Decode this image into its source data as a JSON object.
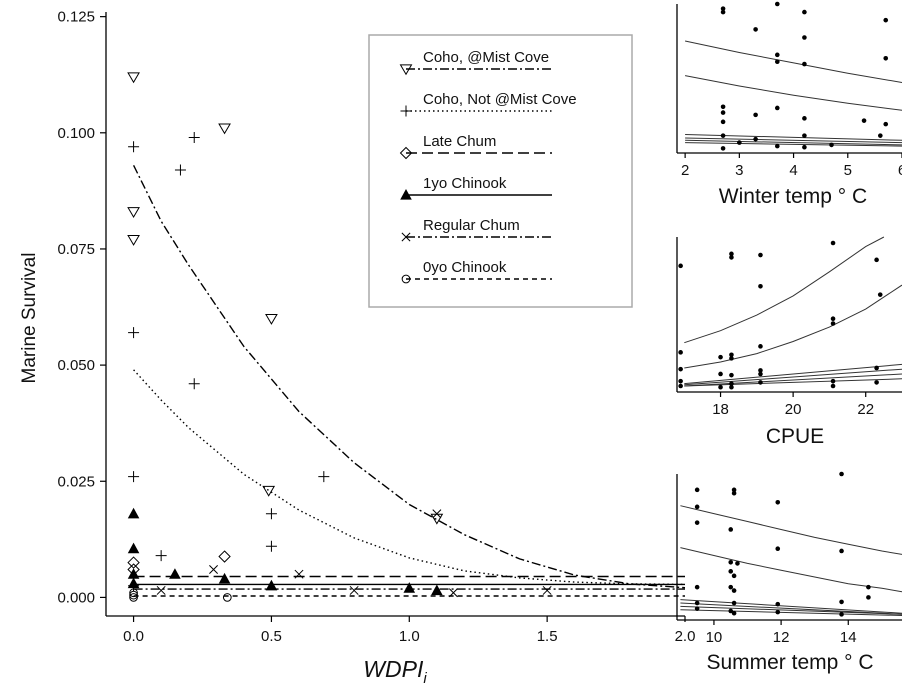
{
  "chart_data": [
    {
      "type": "scatter",
      "title": "",
      "xlabel": "WDPI",
      "xlabel_subscript": "i",
      "ylabel": "Marine Survival",
      "xlim": [
        -0.1,
        2.0
      ],
      "ylim": [
        -0.004,
        0.126
      ],
      "xticks": [
        0.0,
        0.5,
        1.0,
        1.5,
        2.0
      ],
      "xtick_labels": [
        "0.0",
        "0.5",
        "1.0",
        "1.5",
        "2.0"
      ],
      "yticks": [
        0.0,
        0.025,
        0.05,
        0.075,
        0.1,
        0.125
      ],
      "ytick_labels": [
        "0.000",
        "0.025",
        "0.050",
        "0.075",
        "0.100",
        "0.125"
      ],
      "grid": false,
      "legend_position": "top-center",
      "series": [
        {
          "name": "Coho, @Mist Cove",
          "marker": "triangle-down-open",
          "linestyle": "dashdot",
          "points": [
            [
              0.0,
              0.112
            ],
            [
              0.0,
              0.083
            ],
            [
              0.0,
              0.077
            ],
            [
              0.33,
              0.101
            ],
            [
              0.5,
              0.06
            ],
            [
              0.49,
              0.023
            ],
            [
              1.1,
              0.017
            ]
          ],
          "fit": [
            [
              0.0,
              0.093
            ],
            [
              0.1,
              0.081
            ],
            [
              0.2,
              0.0715
            ],
            [
              0.4,
              0.054
            ],
            [
              0.6,
              0.04
            ],
            [
              0.8,
              0.029
            ],
            [
              1.0,
              0.02
            ],
            [
              1.2,
              0.0135
            ],
            [
              1.4,
              0.0083
            ],
            [
              1.6,
              0.0048
            ],
            [
              1.8,
              0.0029
            ],
            [
              2.0,
              0.0021
            ]
          ]
        },
        {
          "name": "Coho, Not @Mist Cove",
          "marker": "plus",
          "linestyle": "dotted",
          "points": [
            [
              0.0,
              0.097
            ],
            [
              0.17,
              0.092
            ],
            [
              0.22,
              0.099
            ],
            [
              0.0,
              0.057
            ],
            [
              0.0,
              0.026
            ],
            [
              0.22,
              0.046
            ],
            [
              0.5,
              0.018
            ],
            [
              0.5,
              0.011
            ],
            [
              0.69,
              0.026
            ],
            [
              0.1,
              0.009
            ],
            [
              0.0,
              0.0025
            ]
          ],
          "fit": [
            [
              0.0,
              0.049
            ],
            [
              0.1,
              0.0425
            ],
            [
              0.2,
              0.0365
            ],
            [
              0.4,
              0.0265
            ],
            [
              0.6,
              0.0188
            ],
            [
              0.8,
              0.0128
            ],
            [
              1.0,
              0.0085
            ],
            [
              1.2,
              0.0057
            ],
            [
              1.4,
              0.0042
            ],
            [
              1.6,
              0.0033
            ],
            [
              1.8,
              0.0029
            ],
            [
              2.0,
              0.0028
            ]
          ]
        },
        {
          "name": "Late Chum",
          "marker": "diamond-open",
          "linestyle": "longdash",
          "points": [
            [
              0.0,
              0.0075
            ],
            [
              0.0,
              0.006
            ],
            [
              0.33,
              0.0088
            ]
          ],
          "fit": [
            [
              0.0,
              0.0045
            ],
            [
              2.0,
              0.0045
            ]
          ]
        },
        {
          "name": "1yo Chinook",
          "marker": "triangle-up-filled",
          "linestyle": "solid",
          "points": [
            [
              0.0,
              0.018
            ],
            [
              0.0,
              0.0105
            ],
            [
              0.0,
              0.005
            ],
            [
              0.0,
              0.003
            ],
            [
              0.15,
              0.005
            ],
            [
              0.33,
              0.004
            ],
            [
              0.5,
              0.0025
            ],
            [
              1.0,
              0.002
            ],
            [
              1.1,
              0.0015
            ]
          ],
          "fit": [
            [
              0.0,
              0.0028
            ],
            [
              2.0,
              0.0028
            ]
          ]
        },
        {
          "name": "Regular Chum",
          "marker": "x",
          "linestyle": "dashdot",
          "points": [
            [
              0.1,
              0.0015
            ],
            [
              0.29,
              0.006
            ],
            [
              0.6,
              0.005
            ],
            [
              1.1,
              0.018
            ],
            [
              1.16,
              0.001
            ],
            [
              1.5,
              0.0015
            ],
            [
              0.8,
              0.0015
            ]
          ],
          "fit": [
            [
              0.0,
              0.0018
            ],
            [
              2.0,
              0.0018
            ]
          ]
        },
        {
          "name": "0yo Chinook",
          "marker": "circle-open",
          "linestyle": "shortdash",
          "points": [
            [
              0.0,
              0.0
            ],
            [
              0.0,
              0.0005
            ],
            [
              0.0,
              0.001
            ],
            [
              0.34,
              0.0
            ]
          ],
          "fit": [
            [
              0.0,
              0.0003
            ],
            [
              2.0,
              0.0003
            ]
          ]
        }
      ]
    },
    {
      "type": "scatter",
      "xlabel": "Winter temp ° C",
      "xlim": [
        1.85,
        6.0
      ],
      "ylim": [
        -0.003,
        0.126
      ],
      "xticks": [
        2,
        3,
        4,
        5,
        6
      ],
      "xtick_labels": [
        "2",
        "3",
        "4",
        "5",
        "6"
      ],
      "points": [
        [
          2.7,
          0.122
        ],
        [
          2.7,
          0.119
        ],
        [
          3.3,
          0.104
        ],
        [
          3.7,
          0.126
        ],
        [
          4.2,
          0.119
        ],
        [
          4.2,
          0.097
        ],
        [
          3.7,
          0.082
        ],
        [
          3.7,
          0.076
        ],
        [
          4.2,
          0.074
        ],
        [
          5.7,
          0.112
        ],
        [
          5.7,
          0.079
        ],
        [
          2.7,
          0.037
        ],
        [
          2.7,
          0.032
        ],
        [
          2.7,
          0.024
        ],
        [
          3.3,
          0.03
        ],
        [
          3.7,
          0.036
        ],
        [
          4.2,
          0.027
        ],
        [
          5.3,
          0.025
        ],
        [
          5.7,
          0.022
        ],
        [
          5.6,
          0.012
        ],
        [
          2.7,
          0.012
        ],
        [
          3.0,
          0.006
        ],
        [
          3.3,
          0.009
        ],
        [
          3.7,
          0.003
        ],
        [
          4.2,
          0.012
        ],
        [
          4.7,
          0.004
        ],
        [
          2.7,
          0.001
        ],
        [
          4.2,
          0.002
        ]
      ],
      "curves": [
        [
          [
            2.0,
            0.094
          ],
          [
            3.0,
            0.084
          ],
          [
            4.0,
            0.075
          ],
          [
            5.0,
            0.066
          ],
          [
            6.0,
            0.058
          ]
        ],
        [
          [
            2.0,
            0.064
          ],
          [
            3.0,
            0.055
          ],
          [
            4.0,
            0.047
          ],
          [
            5.0,
            0.04
          ],
          [
            6.0,
            0.034
          ]
        ],
        [
          [
            2.0,
            0.013
          ],
          [
            6.0,
            0.008
          ]
        ],
        [
          [
            2.0,
            0.01
          ],
          [
            6.0,
            0.006
          ]
        ],
        [
          [
            2.0,
            0.008
          ],
          [
            6.0,
            0.004
          ]
        ],
        [
          [
            2.0,
            0.006
          ],
          [
            6.0,
            0.003
          ]
        ]
      ]
    },
    {
      "type": "scatter",
      "xlabel": "CPUE",
      "xlim": [
        16.8,
        23.0
      ],
      "ylim": [
        -0.003,
        0.126
      ],
      "xticks": [
        18,
        20,
        22
      ],
      "xtick_labels": [
        "18",
        "20",
        "22"
      ],
      "points": [
        [
          16.9,
          0.102
        ],
        [
          18.3,
          0.112
        ],
        [
          18.3,
          0.109
        ],
        [
          19.1,
          0.111
        ],
        [
          21.1,
          0.121
        ],
        [
          22.3,
          0.107
        ],
        [
          19.1,
          0.085
        ],
        [
          21.1,
          0.058
        ],
        [
          21.1,
          0.054
        ],
        [
          22.4,
          0.078
        ],
        [
          16.9,
          0.03
        ],
        [
          18.0,
          0.026
        ],
        [
          18.3,
          0.028
        ],
        [
          18.3,
          0.025
        ],
        [
          19.1,
          0.035
        ],
        [
          16.9,
          0.016
        ],
        [
          18.0,
          0.012
        ],
        [
          18.3,
          0.011
        ],
        [
          19.1,
          0.015
        ],
        [
          19.1,
          0.012
        ],
        [
          22.3,
          0.017
        ],
        [
          16.9,
          0.006
        ],
        [
          18.3,
          0.004
        ],
        [
          19.1,
          0.005
        ],
        [
          21.1,
          0.006
        ],
        [
          22.3,
          0.005
        ],
        [
          16.9,
          0.002
        ],
        [
          18.0,
          0.001
        ],
        [
          18.3,
          0.001
        ],
        [
          21.1,
          0.002
        ]
      ],
      "curves": [
        [
          [
            17.0,
            0.038
          ],
          [
            18.0,
            0.048
          ],
          [
            19.0,
            0.061
          ],
          [
            20.0,
            0.077
          ],
          [
            21.0,
            0.097
          ],
          [
            22.0,
            0.118
          ],
          [
            22.5,
            0.126
          ]
        ],
        [
          [
            17.0,
            0.017
          ],
          [
            18.0,
            0.022
          ],
          [
            19.0,
            0.029
          ],
          [
            20.0,
            0.039
          ],
          [
            21.0,
            0.051
          ],
          [
            22.0,
            0.066
          ],
          [
            23.0,
            0.086
          ]
        ],
        [
          [
            17.0,
            0.004
          ],
          [
            23.0,
            0.02
          ]
        ],
        [
          [
            17.0,
            0.003
          ],
          [
            23.0,
            0.016
          ]
        ],
        [
          [
            17.0,
            0.002
          ],
          [
            23.0,
            0.012
          ]
        ],
        [
          [
            17.0,
            0.002
          ],
          [
            23.0,
            0.008
          ]
        ]
      ]
    },
    {
      "type": "scatter",
      "xlabel": "Summer temp ° C",
      "xlim": [
        8.9,
        15.6
      ],
      "ylim": [
        -0.003,
        0.126
      ],
      "xticks": [
        10,
        12,
        14
      ],
      "xtick_labels": [
        "10",
        "12",
        "14"
      ],
      "points": [
        [
          9.5,
          0.112
        ],
        [
          9.5,
          0.097
        ],
        [
          10.6,
          0.112
        ],
        [
          10.6,
          0.109
        ],
        [
          11.9,
          0.101
        ],
        [
          13.8,
          0.126
        ],
        [
          9.5,
          0.083
        ],
        [
          10.5,
          0.077
        ],
        [
          11.9,
          0.06
        ],
        [
          13.8,
          0.058
        ],
        [
          14.6,
          0.026
        ],
        [
          14.6,
          0.017
        ],
        [
          10.5,
          0.048
        ],
        [
          10.7,
          0.047
        ],
        [
          10.5,
          0.04
        ],
        [
          10.6,
          0.036
        ],
        [
          9.5,
          0.026
        ],
        [
          10.5,
          0.026
        ],
        [
          10.6,
          0.023
        ],
        [
          9.5,
          0.012
        ],
        [
          10.6,
          0.012
        ],
        [
          11.9,
          0.011
        ],
        [
          13.8,
          0.013
        ],
        [
          9.5,
          0.007
        ],
        [
          10.5,
          0.005
        ],
        [
          10.6,
          0.003
        ],
        [
          11.9,
          0.004
        ],
        [
          13.8,
          0.002
        ]
      ],
      "curves": [
        [
          [
            9.0,
            0.098
          ],
          [
            10.0,
            0.091
          ],
          [
            11.0,
            0.084
          ],
          [
            12.0,
            0.077
          ],
          [
            13.0,
            0.07
          ],
          [
            14.0,
            0.064
          ],
          [
            15.0,
            0.058
          ],
          [
            15.6,
            0.055
          ]
        ],
        [
          [
            9.0,
            0.061
          ],
          [
            10.0,
            0.054
          ],
          [
            11.0,
            0.047
          ],
          [
            12.0,
            0.041
          ],
          [
            13.0,
            0.035
          ],
          [
            14.0,
            0.029
          ],
          [
            15.0,
            0.025
          ],
          [
            15.6,
            0.022
          ]
        ],
        [
          [
            9.0,
            0.015
          ],
          [
            15.6,
            0.003
          ]
        ],
        [
          [
            9.0,
            0.012
          ],
          [
            15.6,
            0.002
          ]
        ],
        [
          [
            9.0,
            0.009
          ],
          [
            15.6,
            0.002
          ]
        ],
        [
          [
            9.0,
            0.006
          ],
          [
            15.6,
            0.001
          ]
        ]
      ]
    }
  ]
}
